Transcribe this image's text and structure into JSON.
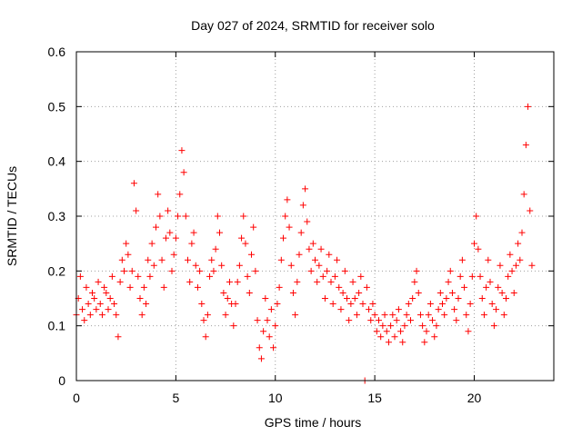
{
  "chart_data": {
    "type": "scatter",
    "title": "Day 027 of 2024, SRMTID for receiver solo",
    "xlabel": "GPS time / hours",
    "ylabel": "SRMTID / TECUs",
    "xlim": [
      0,
      24
    ],
    "ylim": [
      0,
      0.6
    ],
    "x_ticks": [
      0,
      5,
      10,
      15,
      20
    ],
    "x_tick_labels": [
      "0",
      "5",
      "10",
      "15",
      "20"
    ],
    "y_ticks": [
      0,
      0.1,
      0.2,
      0.3,
      0.4,
      0.5,
      0.6
    ],
    "y_tick_labels": [
      "0",
      "0.1",
      "0.2",
      "0.3",
      "0.4",
      "0.5",
      "0.6"
    ],
    "grid": true,
    "marker": "plus",
    "color": "#ff0000",
    "series": [
      {
        "name": "SRMTID",
        "points": [
          [
            0.0,
            0.12
          ],
          [
            0.1,
            0.15
          ],
          [
            0.2,
            0.19
          ],
          [
            0.3,
            0.13
          ],
          [
            0.4,
            0.11
          ],
          [
            0.5,
            0.17
          ],
          [
            0.6,
            0.14
          ],
          [
            0.7,
            0.12
          ],
          [
            0.8,
            0.16
          ],
          [
            0.9,
            0.15
          ],
          [
            1.0,
            0.13
          ],
          [
            1.1,
            0.18
          ],
          [
            1.2,
            0.14
          ],
          [
            1.3,
            0.12
          ],
          [
            1.4,
            0.17
          ],
          [
            1.5,
            0.16
          ],
          [
            1.6,
            0.13
          ],
          [
            1.7,
            0.15
          ],
          [
            1.8,
            0.19
          ],
          [
            1.9,
            0.14
          ],
          [
            2.0,
            0.12
          ],
          [
            2.1,
            0.08
          ],
          [
            2.2,
            0.18
          ],
          [
            2.3,
            0.22
          ],
          [
            2.4,
            0.2
          ],
          [
            2.5,
            0.25
          ],
          [
            2.6,
            0.23
          ],
          [
            2.7,
            0.17
          ],
          [
            2.8,
            0.2
          ],
          [
            2.9,
            0.36
          ],
          [
            3.0,
            0.31
          ],
          [
            3.1,
            0.19
          ],
          [
            3.2,
            0.15
          ],
          [
            3.3,
            0.12
          ],
          [
            3.4,
            0.17
          ],
          [
            3.5,
            0.14
          ],
          [
            3.6,
            0.22
          ],
          [
            3.7,
            0.19
          ],
          [
            3.8,
            0.25
          ],
          [
            3.9,
            0.21
          ],
          [
            4.0,
            0.28
          ],
          [
            4.1,
            0.34
          ],
          [
            4.2,
            0.3
          ],
          [
            4.3,
            0.22
          ],
          [
            4.4,
            0.17
          ],
          [
            4.5,
            0.26
          ],
          [
            4.6,
            0.31
          ],
          [
            4.7,
            0.27
          ],
          [
            4.8,
            0.2
          ],
          [
            4.9,
            0.23
          ],
          [
            5.0,
            0.26
          ],
          [
            5.1,
            0.3
          ],
          [
            5.2,
            0.34
          ],
          [
            5.3,
            0.42
          ],
          [
            5.4,
            0.38
          ],
          [
            5.5,
            0.3
          ],
          [
            5.6,
            0.22
          ],
          [
            5.7,
            0.18
          ],
          [
            5.8,
            0.25
          ],
          [
            5.9,
            0.27
          ],
          [
            6.0,
            0.21
          ],
          [
            6.1,
            0.17
          ],
          [
            6.2,
            0.2
          ],
          [
            6.3,
            0.14
          ],
          [
            6.4,
            0.11
          ],
          [
            6.5,
            0.08
          ],
          [
            6.6,
            0.12
          ],
          [
            6.7,
            0.19
          ],
          [
            6.8,
            0.22
          ],
          [
            6.9,
            0.2
          ],
          [
            7.0,
            0.24
          ],
          [
            7.1,
            0.3
          ],
          [
            7.2,
            0.27
          ],
          [
            7.3,
            0.21
          ],
          [
            7.4,
            0.16
          ],
          [
            7.5,
            0.12
          ],
          [
            7.6,
            0.15
          ],
          [
            7.7,
            0.18
          ],
          [
            7.8,
            0.14
          ],
          [
            7.9,
            0.1
          ],
          [
            8.0,
            0.14
          ],
          [
            8.1,
            0.18
          ],
          [
            8.2,
            0.21
          ],
          [
            8.3,
            0.26
          ],
          [
            8.4,
            0.3
          ],
          [
            8.5,
            0.25
          ],
          [
            8.6,
            0.19
          ],
          [
            8.7,
            0.16
          ],
          [
            8.8,
            0.23
          ],
          [
            8.9,
            0.28
          ],
          [
            9.0,
            0.2
          ],
          [
            9.1,
            0.11
          ],
          [
            9.2,
            0.06
          ],
          [
            9.3,
            0.04
          ],
          [
            9.4,
            0.09
          ],
          [
            9.5,
            0.15
          ],
          [
            9.6,
            0.11
          ],
          [
            9.7,
            0.08
          ],
          [
            9.8,
            0.13
          ],
          [
            9.9,
            0.06
          ],
          [
            10.0,
            0.1
          ],
          [
            10.1,
            0.14
          ],
          [
            10.2,
            0.17
          ],
          [
            10.3,
            0.22
          ],
          [
            10.4,
            0.26
          ],
          [
            10.5,
            0.3
          ],
          [
            10.6,
            0.33
          ],
          [
            10.7,
            0.28
          ],
          [
            10.8,
            0.21
          ],
          [
            10.9,
            0.16
          ],
          [
            11.0,
            0.12
          ],
          [
            11.1,
            0.18
          ],
          [
            11.2,
            0.23
          ],
          [
            11.3,
            0.27
          ],
          [
            11.4,
            0.32
          ],
          [
            11.5,
            0.35
          ],
          [
            11.6,
            0.29
          ],
          [
            11.7,
            0.24
          ],
          [
            11.8,
            0.2
          ],
          [
            11.9,
            0.25
          ],
          [
            12.0,
            0.22
          ],
          [
            12.1,
            0.18
          ],
          [
            12.2,
            0.21
          ],
          [
            12.3,
            0.24
          ],
          [
            12.4,
            0.19
          ],
          [
            12.5,
            0.15
          ],
          [
            12.6,
            0.2
          ],
          [
            12.7,
            0.23
          ],
          [
            12.8,
            0.18
          ],
          [
            12.9,
            0.14
          ],
          [
            13.0,
            0.19
          ],
          [
            13.1,
            0.22
          ],
          [
            13.2,
            0.17
          ],
          [
            13.3,
            0.13
          ],
          [
            13.4,
            0.16
          ],
          [
            13.5,
            0.2
          ],
          [
            13.6,
            0.15
          ],
          [
            13.7,
            0.11
          ],
          [
            13.8,
            0.14
          ],
          [
            13.9,
            0.18
          ],
          [
            14.0,
            0.15
          ],
          [
            14.1,
            0.12
          ],
          [
            14.2,
            0.16
          ],
          [
            14.3,
            0.19
          ],
          [
            14.4,
            0.14
          ],
          [
            14.5,
            0.0
          ],
          [
            14.6,
            0.17
          ],
          [
            14.7,
            0.13
          ],
          [
            14.8,
            0.11
          ],
          [
            14.9,
            0.14
          ],
          [
            15.0,
            0.12
          ],
          [
            15.1,
            0.09
          ],
          [
            15.2,
            0.11
          ],
          [
            15.3,
            0.08
          ],
          [
            15.4,
            0.1
          ],
          [
            15.5,
            0.12
          ],
          [
            15.6,
            0.09
          ],
          [
            15.7,
            0.07
          ],
          [
            15.8,
            0.1
          ],
          [
            15.9,
            0.12
          ],
          [
            16.0,
            0.08
          ],
          [
            16.1,
            0.11
          ],
          [
            16.2,
            0.13
          ],
          [
            16.3,
            0.09
          ],
          [
            16.4,
            0.07
          ],
          [
            16.5,
            0.1
          ],
          [
            16.6,
            0.12
          ],
          [
            16.7,
            0.14
          ],
          [
            16.8,
            0.11
          ],
          [
            16.9,
            0.15
          ],
          [
            17.0,
            0.18
          ],
          [
            17.1,
            0.2
          ],
          [
            17.2,
            0.16
          ],
          [
            17.3,
            0.12
          ],
          [
            17.4,
            0.1
          ],
          [
            17.5,
            0.07
          ],
          [
            17.6,
            0.09
          ],
          [
            17.7,
            0.12
          ],
          [
            17.8,
            0.14
          ],
          [
            17.9,
            0.11
          ],
          [
            18.0,
            0.08
          ],
          [
            18.1,
            0.1
          ],
          [
            18.2,
            0.13
          ],
          [
            18.3,
            0.16
          ],
          [
            18.4,
            0.14
          ],
          [
            18.5,
            0.12
          ],
          [
            18.6,
            0.15
          ],
          [
            18.7,
            0.18
          ],
          [
            18.8,
            0.2
          ],
          [
            18.9,
            0.16
          ],
          [
            19.0,
            0.13
          ],
          [
            19.1,
            0.11
          ],
          [
            19.2,
            0.15
          ],
          [
            19.3,
            0.19
          ],
          [
            19.4,
            0.22
          ],
          [
            19.5,
            0.17
          ],
          [
            19.6,
            0.12
          ],
          [
            19.7,
            0.09
          ],
          [
            19.8,
            0.14
          ],
          [
            19.9,
            0.19
          ],
          [
            20.0,
            0.25
          ],
          [
            20.1,
            0.3
          ],
          [
            20.2,
            0.24
          ],
          [
            20.3,
            0.19
          ],
          [
            20.4,
            0.15
          ],
          [
            20.5,
            0.12
          ],
          [
            20.6,
            0.17
          ],
          [
            20.7,
            0.22
          ],
          [
            20.8,
            0.18
          ],
          [
            20.9,
            0.14
          ],
          [
            21.0,
            0.1
          ],
          [
            21.1,
            0.13
          ],
          [
            21.2,
            0.17
          ],
          [
            21.3,
            0.21
          ],
          [
            21.4,
            0.16
          ],
          [
            21.5,
            0.12
          ],
          [
            21.6,
            0.15
          ],
          [
            21.7,
            0.19
          ],
          [
            21.8,
            0.23
          ],
          [
            21.9,
            0.2
          ],
          [
            22.0,
            0.16
          ],
          [
            22.1,
            0.21
          ],
          [
            22.2,
            0.25
          ],
          [
            22.3,
            0.22
          ],
          [
            22.4,
            0.27
          ],
          [
            22.5,
            0.34
          ],
          [
            22.6,
            0.43
          ],
          [
            22.7,
            0.5
          ],
          [
            22.8,
            0.31
          ],
          [
            22.9,
            0.21
          ]
        ]
      }
    ]
  }
}
